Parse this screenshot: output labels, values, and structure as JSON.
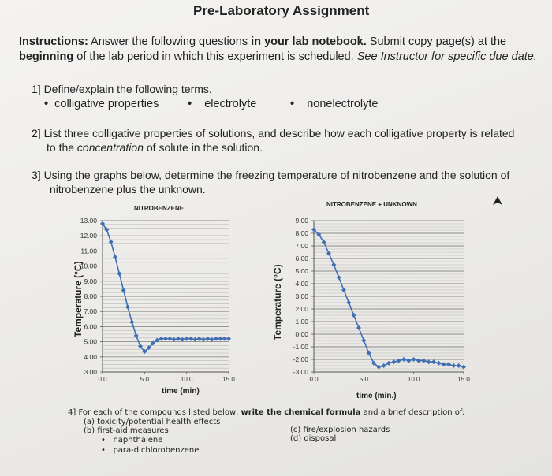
{
  "header": {
    "title": "Pre-Laboratory Assignment"
  },
  "instructions": {
    "label": "Instructions:",
    "text1": " Answer the following questions ",
    "emph": "in your lab notebook.",
    "text2": " Submit copy page(s) at the",
    "line2_bold": "beginning",
    "line2_text": " of the lab period in which this experiment is scheduled. ",
    "line2_italic": "See Instructor for specific due date."
  },
  "q1": {
    "text": "1]  Define/explain the following terms.",
    "terms": [
      "colligative properties",
      "electrolyte",
      "nonelectrolyte"
    ]
  },
  "q2": {
    "line1": "2]  List three colligative properties of solutions, and describe how each colligative property is related",
    "line2a": "to the ",
    "line2_italic": "concentration",
    "line2b": " of solute in the solution."
  },
  "q3": {
    "line1": "3]  Using the graphs below, determine the freezing temperature of nitrobenzene and the solution of",
    "line2": "nitrobenzene plus the unknown."
  },
  "chart_data": [
    {
      "type": "line",
      "title": "NITROBENZENE",
      "xlabel": "time (min)",
      "ylabel": "Temperature (°C)",
      "xlim": [
        0,
        15
      ],
      "ylim": [
        3,
        13
      ],
      "yticks": [
        "3.00",
        "4.00",
        "5.00",
        "6.00",
        "7.00",
        "8.00",
        "9.00",
        "10.00",
        "11.00",
        "12.00",
        "13.00"
      ],
      "xticks": [
        "0.0",
        "5.0",
        "10.0",
        "15.0"
      ],
      "color": "#3f6fb5",
      "x": [
        0,
        0.5,
        1,
        1.5,
        2,
        2.5,
        3,
        3.5,
        4,
        4.5,
        5,
        5.5,
        6,
        6.5,
        7,
        7.5,
        8,
        8.5,
        9,
        9.5,
        10,
        10.5,
        11,
        11.5,
        12,
        12.5,
        13,
        13.5,
        14,
        14.5,
        15
      ],
      "y": [
        12.8,
        12.4,
        11.6,
        10.6,
        9.5,
        8.4,
        7.3,
        6.3,
        5.4,
        4.7,
        4.35,
        4.6,
        4.9,
        5.1,
        5.2,
        5.2,
        5.2,
        5.15,
        5.2,
        5.15,
        5.2,
        5.2,
        5.15,
        5.2,
        5.15,
        5.2,
        5.15,
        5.2,
        5.2,
        5.2,
        5.2
      ]
    },
    {
      "type": "line",
      "title": "NITROBENZENE + UNKNOWN",
      "xlabel": "time (min.)",
      "ylabel": "Temperature (°C)",
      "xlim": [
        0,
        15
      ],
      "ylim": [
        -3,
        9
      ],
      "yticks": [
        "-3.00",
        "-2.00",
        "-1.00",
        "0.00",
        "1.00",
        "2.00",
        "3.00",
        "4.00",
        "5.00",
        "6.00",
        "7.00",
        "8.00",
        "9.00"
      ],
      "xticks": [
        "0.0",
        "5.0",
        "10.0",
        "15.0"
      ],
      "color": "#3f6fb5",
      "x": [
        0,
        0.5,
        1,
        1.5,
        2,
        2.5,
        3,
        3.5,
        4,
        4.5,
        5,
        5.5,
        6,
        6.5,
        7,
        7.5,
        8,
        8.5,
        9,
        9.5,
        10,
        10.5,
        11,
        11.5,
        12,
        12.5,
        13,
        13.5,
        14,
        14.5,
        15
      ],
      "y": [
        8.3,
        7.9,
        7.3,
        6.4,
        5.5,
        4.5,
        3.5,
        2.5,
        1.5,
        0.5,
        -0.5,
        -1.5,
        -2.3,
        -2.6,
        -2.5,
        -2.3,
        -2.2,
        -2.1,
        -2.0,
        -2.1,
        -2.0,
        -2.1,
        -2.1,
        -2.2,
        -2.2,
        -2.3,
        -2.4,
        -2.4,
        -2.5,
        -2.5,
        -2.6
      ]
    }
  ],
  "q4": {
    "line1a": "4]  For each of the compounds listed below, ",
    "line1b": "write the chemical formula",
    "line1c": " and a brief description of:",
    "a": "(a) toxicity/potential health effects",
    "b": "(b) first-aid measures",
    "c": "(c) fire/explosion hazards",
    "d": "(d) disposal",
    "compounds": [
      "naphthalene",
      "para-dichlorobenzene"
    ]
  }
}
